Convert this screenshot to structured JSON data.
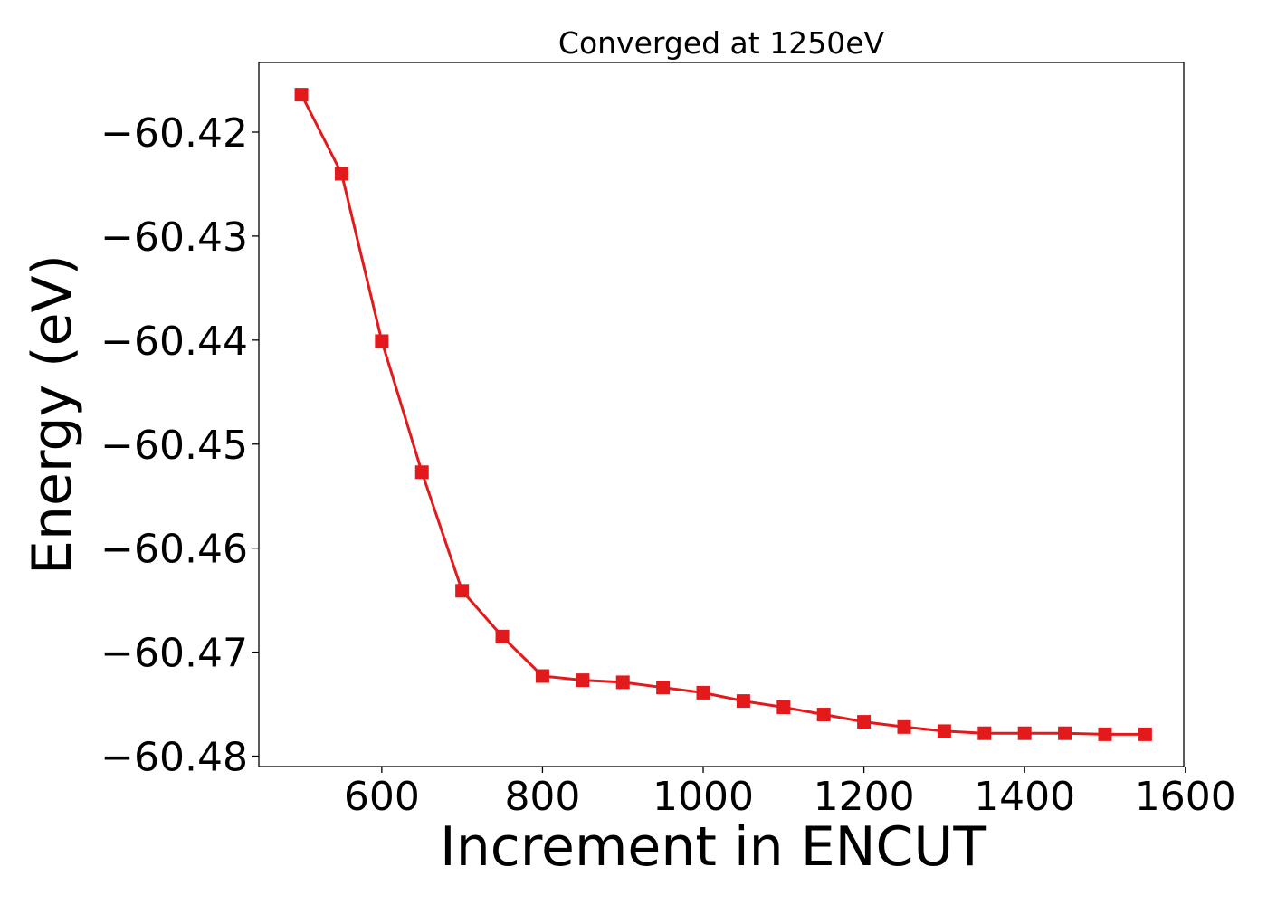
{
  "chart_data": {
    "type": "line",
    "title": "Converged at 1250eV",
    "xlabel": "Increment in ENCUT",
    "ylabel": "Energy (eV)",
    "xlim": [
      447,
      1598
    ],
    "ylim": [
      -60.481,
      -60.4133
    ],
    "xticks": [
      600,
      800,
      1000,
      1200,
      1400,
      1600
    ],
    "xtick_labels": [
      "600",
      "800",
      "1000",
      "1200",
      "1400",
      "1600"
    ],
    "yticks": [
      -60.42,
      -60.43,
      -60.44,
      -60.45,
      -60.46,
      -60.47,
      -60.48
    ],
    "ytick_labels": [
      "−60.42",
      "−60.43",
      "−60.44",
      "−60.45",
      "−60.46",
      "−60.47",
      "−60.48"
    ],
    "grid": false,
    "legend": false,
    "series": [
      {
        "color": "#e31a1c",
        "marker": "square",
        "x": [
          500,
          550,
          600,
          650,
          700,
          750,
          800,
          850,
          900,
          950,
          1000,
          1050,
          1100,
          1150,
          1200,
          1250,
          1300,
          1350,
          1400,
          1450,
          1500,
          1550
        ],
        "y": [
          -60.4164,
          -60.424,
          -60.4401,
          -60.4527,
          -60.4641,
          -60.4685,
          -60.4723,
          -60.4727,
          -60.4729,
          -60.4734,
          -60.4739,
          -60.4747,
          -60.4753,
          -60.476,
          -60.4767,
          -60.4772,
          -60.4776,
          -60.4778,
          -60.4778,
          -60.4778,
          -60.4779,
          -60.4779
        ]
      }
    ]
  }
}
